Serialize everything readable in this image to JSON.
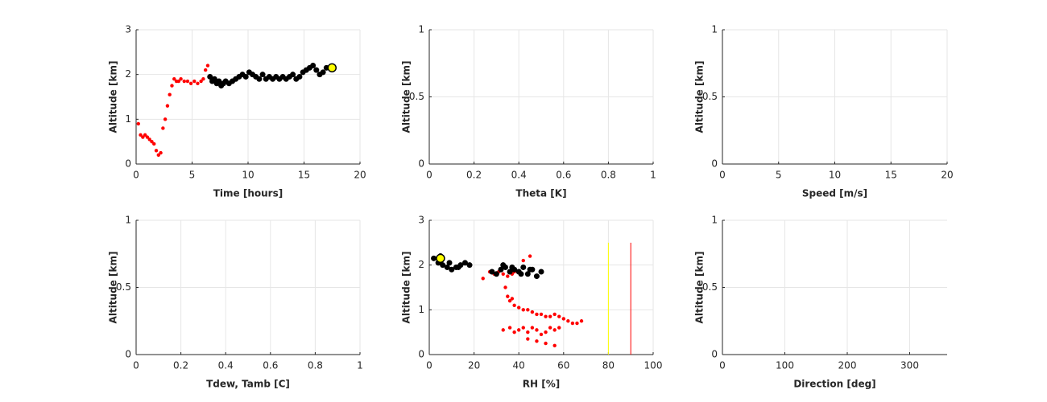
{
  "chart_data": [
    {
      "type": "scatter",
      "xlabel": "Time [hours]",
      "ylabel": "Altitude [km]",
      "xlim": [
        0,
        20
      ],
      "ylim": [
        0,
        3
      ],
      "xticks": [
        0,
        5,
        10,
        15,
        20
      ],
      "yticks": [
        0,
        1,
        2,
        3
      ],
      "grid": true,
      "series": [
        {
          "color": "#ff0000",
          "x": [
            0.2,
            0.4,
            0.6,
            0.8,
            1.0,
            1.2,
            1.4,
            1.6,
            1.8,
            2.0,
            2.2,
            2.4,
            2.6,
            2.8,
            3.0,
            3.2,
            3.4,
            3.6,
            3.8,
            4.0,
            4.3,
            4.6,
            4.9,
            5.2,
            5.5,
            5.8,
            6.0,
            6.2,
            6.4
          ],
          "values": [
            0.9,
            0.65,
            0.6,
            0.65,
            0.6,
            0.55,
            0.5,
            0.45,
            0.3,
            0.2,
            0.25,
            0.8,
            1.0,
            1.3,
            1.55,
            1.75,
            1.9,
            1.85,
            1.85,
            1.9,
            1.85,
            1.85,
            1.8,
            1.85,
            1.8,
            1.85,
            1.9,
            2.1,
            2.2
          ]
        },
        {
          "color": "#000000",
          "x": [
            6.6,
            6.8,
            7.0,
            7.2,
            7.4,
            7.6,
            7.8,
            8.0,
            8.3,
            8.6,
            8.9,
            9.2,
            9.5,
            9.8,
            10.1,
            10.4,
            10.7,
            11.0,
            11.3,
            11.6,
            11.9,
            12.2,
            12.5,
            12.8,
            13.1,
            13.4,
            13.7,
            14.0,
            14.3,
            14.6,
            14.9,
            15.2,
            15.5,
            15.8,
            16.1,
            16.4,
            16.7,
            17.0
          ],
          "values": [
            1.95,
            1.85,
            1.9,
            1.8,
            1.85,
            1.75,
            1.8,
            1.85,
            1.8,
            1.85,
            1.9,
            1.95,
            2.0,
            1.95,
            2.05,
            2.0,
            1.95,
            1.9,
            2.0,
            1.9,
            1.95,
            1.9,
            1.95,
            1.9,
            1.95,
            1.9,
            1.95,
            2.0,
            1.9,
            1.95,
            2.05,
            2.1,
            2.15,
            2.2,
            2.1,
            2.0,
            2.05,
            2.15
          ]
        },
        {
          "color": "#ffff00",
          "x": [
            17.5
          ],
          "values": [
            2.15
          ]
        }
      ]
    },
    {
      "type": "scatter",
      "xlabel": "Theta [K]",
      "ylabel": "Altitude [km]",
      "xlim": [
        0,
        1
      ],
      "ylim": [
        0,
        1
      ],
      "xticks": [
        0,
        0.2,
        0.4,
        0.6,
        0.8,
        1
      ],
      "yticks": [
        0,
        0.5,
        1
      ],
      "grid": true,
      "series": []
    },
    {
      "type": "scatter",
      "xlabel": "Speed [m/s]",
      "ylabel": "Altitude [km]",
      "xlim": [
        0,
        20
      ],
      "ylim": [
        0,
        1
      ],
      "xticks": [
        0,
        5,
        10,
        15,
        20
      ],
      "yticks": [
        0,
        0.5,
        1
      ],
      "grid": true,
      "series": []
    },
    {
      "type": "scatter",
      "xlabel": "Tdew, Tamb [C]",
      "ylabel": "Altitude [km]",
      "xlim": [
        0,
        1
      ],
      "ylim": [
        0,
        1
      ],
      "xticks": [
        0,
        0.2,
        0.4,
        0.6,
        0.8,
        1
      ],
      "yticks": [
        0,
        0.5,
        1
      ],
      "grid": true,
      "series": []
    },
    {
      "type": "scatter",
      "xlabel": "RH [%]",
      "ylabel": "Altitude [km]",
      "xlim": [
        0,
        100
      ],
      "ylim": [
        0,
        3
      ],
      "xticks": [
        0,
        20,
        40,
        60,
        80,
        100
      ],
      "yticks": [
        0,
        1,
        2,
        3
      ],
      "grid": true,
      "series": [
        {
          "color": "#ff0000",
          "x": [
            24,
            27,
            29,
            31,
            33,
            35,
            37,
            38,
            34,
            35,
            36,
            37,
            38,
            40,
            42,
            44,
            46,
            48,
            50,
            52,
            54,
            56,
            58,
            60,
            62,
            64,
            66,
            68,
            33,
            36,
            38,
            40,
            42,
            44,
            46,
            48,
            50,
            52,
            54,
            56,
            58,
            44,
            48,
            52,
            56,
            42,
            45
          ],
          "values": [
            1.7,
            1.85,
            1.8,
            1.85,
            1.8,
            1.75,
            1.8,
            1.85,
            1.5,
            1.3,
            1.2,
            1.25,
            1.1,
            1.05,
            1.0,
            1.0,
            0.95,
            0.9,
            0.9,
            0.85,
            0.85,
            0.9,
            0.85,
            0.8,
            0.75,
            0.7,
            0.7,
            0.75,
            0.55,
            0.6,
            0.5,
            0.55,
            0.6,
            0.5,
            0.6,
            0.55,
            0.45,
            0.5,
            0.6,
            0.55,
            0.6,
            0.35,
            0.3,
            0.25,
            0.2,
            2.1,
            2.2
          ]
        },
        {
          "color": "#000000",
          "x": [
            2,
            4,
            6,
            8,
            10,
            12,
            14,
            16,
            18,
            28,
            30,
            32,
            34,
            36,
            38,
            40,
            42,
            44,
            46,
            48,
            50,
            5,
            9,
            13,
            33,
            37,
            41,
            45
          ],
          "values": [
            2.15,
            2.05,
            2.0,
            1.95,
            1.9,
            1.95,
            2.0,
            2.05,
            2.0,
            1.85,
            1.8,
            1.9,
            1.95,
            1.85,
            1.9,
            1.85,
            1.95,
            1.8,
            1.9,
            1.75,
            1.85,
            2.2,
            2.05,
            1.95,
            2.0,
            1.95,
            1.8,
            1.9
          ]
        },
        {
          "color": "#ffff00",
          "x": [
            5
          ],
          "values": [
            2.15
          ]
        },
        {
          "color": "#ffff00",
          "x": [
            80,
            80
          ],
          "values": [
            0,
            2.5
          ],
          "line": true
        },
        {
          "color": "#ff0000",
          "x": [
            90,
            90
          ],
          "values": [
            0,
            2.5
          ],
          "line": true
        }
      ]
    },
    {
      "type": "scatter",
      "xlabel": "Direction [deg]",
      "ylabel": "Altitude [km]",
      "xlim": [
        0,
        360
      ],
      "ylim": [
        0,
        1
      ],
      "xticks": [
        0,
        100,
        200,
        300
      ],
      "yticks": [
        0,
        0.5,
        1
      ],
      "grid": true,
      "series": []
    }
  ]
}
